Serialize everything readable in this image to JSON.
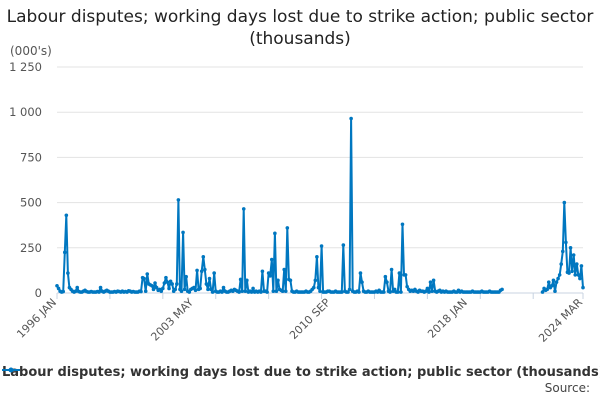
{
  "chart_data": {
    "type": "line",
    "title": "Labour disputes; working days lost due to strike action; public sector (thousands)",
    "unit_label": "(000's)",
    "xlabel": "",
    "ylabel": "(000's)",
    "start_month": "1996-01",
    "frequency": "monthly",
    "ylim": [
      0,
      1250
    ],
    "yticks": [
      0,
      250,
      500,
      750,
      1000,
      1250
    ],
    "ytick_labels": [
      "0",
      "250",
      "500",
      "750",
      "1 000",
      "1 250"
    ],
    "xtick_labels": [
      "1996 JAN",
      "2003 MAY",
      "2010 SEP",
      "2018 JAN",
      "2024 MAR"
    ],
    "xtick_indices": [
      0,
      88,
      176,
      264,
      338
    ],
    "grid": true,
    "legend_position": "bottom",
    "color": "#0077c0",
    "series": [
      {
        "name": "Labour disputes; working days lost due to strike action; public sector (thousands)",
        "values": [
          40,
          25,
          10,
          5,
          8,
          225,
          430,
          110,
          30,
          20,
          10,
          5,
          10,
          30,
          8,
          5,
          5,
          10,
          15,
          8,
          5,
          5,
          8,
          5,
          5,
          5,
          8,
          5,
          30,
          10,
          5,
          10,
          15,
          10,
          5,
          5,
          5,
          8,
          5,
          10,
          8,
          5,
          10,
          5,
          8,
          5,
          12,
          10,
          5,
          8,
          5,
          5,
          5,
          10,
          8,
          85,
          80,
          10,
          105,
          50,
          45,
          40,
          20,
          55,
          30,
          15,
          20,
          10,
          25,
          55,
          85,
          60,
          25,
          65,
          50,
          10,
          20,
          50,
          515,
          20,
          10,
          335,
          20,
          90,
          10,
          5,
          20,
          25,
          30,
          15,
          125,
          20,
          25,
          120,
          200,
          130,
          50,
          20,
          80,
          20,
          5,
          110,
          10,
          5,
          5,
          10,
          5,
          30,
          10,
          5,
          5,
          10,
          15,
          10,
          20,
          15,
          10,
          5,
          75,
          10,
          465,
          10,
          70,
          5,
          10,
          5,
          25,
          5,
          10,
          5,
          10,
          5,
          120,
          10,
          10,
          5,
          110,
          95,
          185,
          10,
          330,
          10,
          70,
          20,
          15,
          10,
          130,
          10,
          360,
          75,
          70,
          10,
          5,
          5,
          10,
          5,
          5,
          5,
          5,
          5,
          10,
          5,
          5,
          10,
          20,
          30,
          70,
          200,
          30,
          10,
          260,
          5,
          5,
          5,
          10,
          10,
          5,
          5,
          5,
          10,
          5,
          5,
          5,
          5,
          265,
          10,
          5,
          5,
          20,
          965,
          10,
          5,
          5,
          10,
          5,
          110,
          60,
          10,
          5,
          5,
          10,
          5,
          5,
          5,
          5,
          10,
          5,
          15,
          5,
          5,
          5,
          90,
          60,
          10,
          5,
          130,
          10,
          20,
          5,
          5,
          110,
          5,
          380,
          100,
          100,
          35,
          20,
          10,
          15,
          10,
          20,
          10,
          5,
          15,
          10,
          10,
          5,
          10,
          25,
          5,
          60,
          10,
          70,
          10,
          5,
          10,
          15,
          5,
          10,
          5,
          10,
          5,
          5,
          5,
          5,
          10,
          5,
          5,
          15,
          5,
          10,
          5,
          5,
          5,
          5,
          5,
          5,
          10,
          5,
          5,
          5,
          5,
          5,
          10,
          5,
          5,
          5,
          5,
          10,
          5,
          5,
          5,
          5,
          5,
          5,
          15,
          20,
          null,
          null,
          null,
          null,
          null,
          null,
          null,
          null,
          null,
          null,
          null,
          null,
          null,
          null,
          null,
          null,
          null,
          null,
          null,
          null,
          null,
          null,
          null,
          null,
          null,
          5,
          25,
          15,
          20,
          60,
          30,
          40,
          70,
          10,
          60,
          80,
          100,
          160,
          230,
          500,
          280,
          115,
          110,
          250,
          120,
          210,
          100,
          160,
          100,
          80,
          150,
          30
        ]
      }
    ]
  },
  "source_label": "Source:"
}
